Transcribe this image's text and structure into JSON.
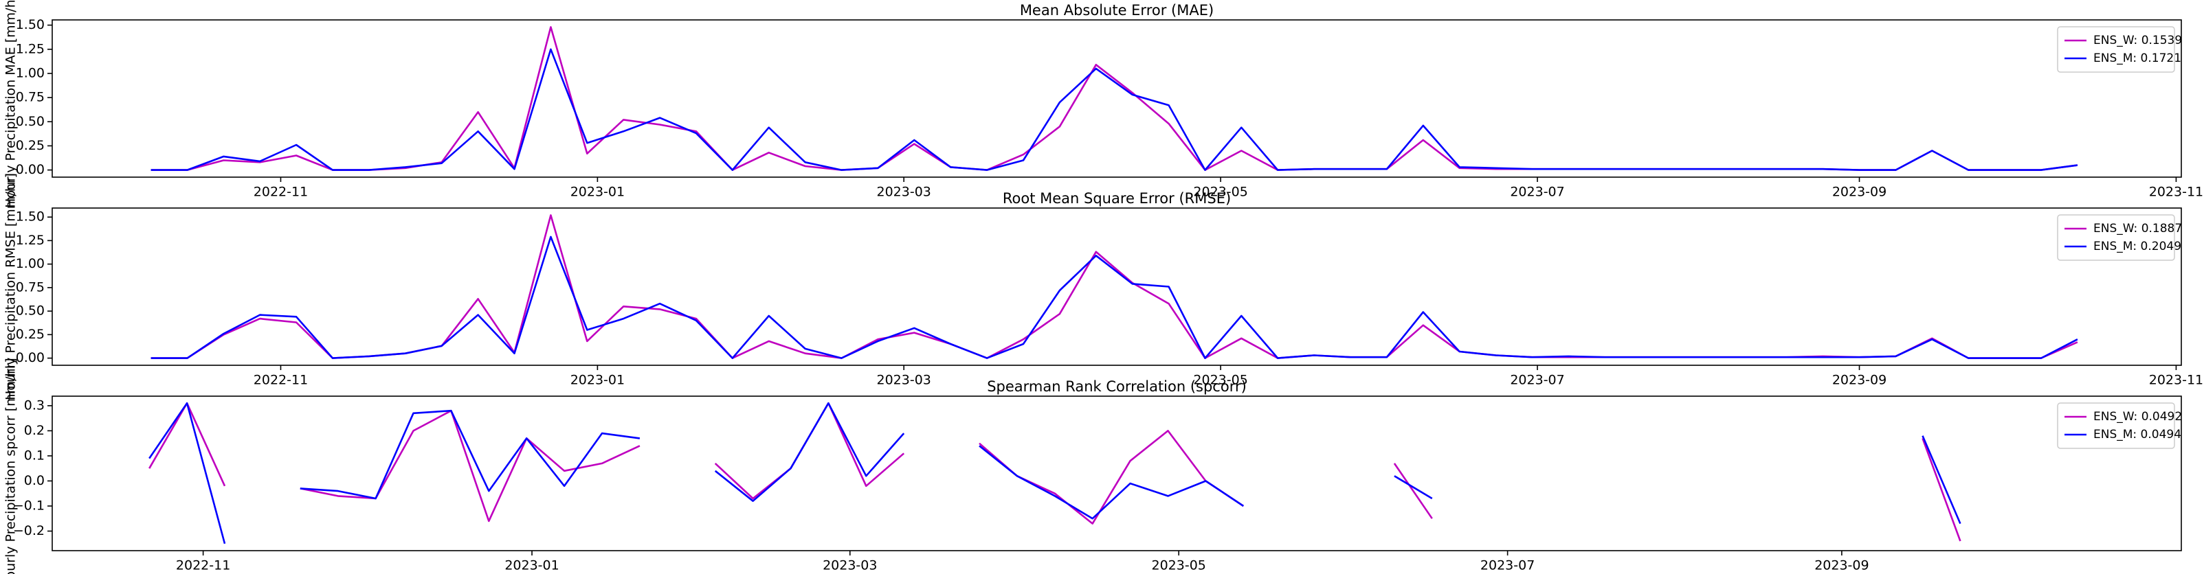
{
  "chart_data": [
    {
      "type": "line",
      "title": "Mean Absolute Error (MAE)",
      "y_label": "Hourly Precipitation MAE [mm/hr]",
      "x": [
        -25,
        -18,
        -11,
        -4,
        3,
        10,
        17,
        24,
        31,
        38,
        45,
        52,
        59,
        66,
        73,
        80,
        87,
        94,
        101,
        108,
        115,
        122,
        129,
        136,
        143,
        150,
        157,
        164,
        171,
        178,
        185,
        192,
        199,
        206,
        213,
        220,
        227,
        234,
        241,
        248,
        255,
        262,
        269,
        276,
        283,
        290,
        297,
        304,
        311,
        318,
        325,
        332,
        339,
        346
      ],
      "xlim": [
        -44,
        366
      ],
      "xticks": [
        {
          "value": 0,
          "label": "2022-11"
        },
        {
          "value": 61,
          "label": "2023-01"
        },
        {
          "value": 120,
          "label": "2023-03"
        },
        {
          "value": 181,
          "label": "2023-05"
        },
        {
          "value": 242,
          "label": "2023-07"
        },
        {
          "value": 304,
          "label": "2023-09"
        },
        {
          "value": 365,
          "label": "2023-11"
        }
      ],
      "ylim": [
        -0.074,
        1.554
      ],
      "yticks": [
        {
          "value": 0,
          "label": "0.00"
        },
        {
          "value": 0.25,
          "label": "0.25"
        },
        {
          "value": 0.5,
          "label": "0.50"
        },
        {
          "value": 0.75,
          "label": "0.75"
        },
        {
          "value": 1,
          "label": "1.00"
        },
        {
          "value": 1.25,
          "label": "1.25"
        },
        {
          "value": 1.5,
          "label": "1.50"
        }
      ],
      "legend": "upper right",
      "series": [
        {
          "name": "ENS_W: 0.1539",
          "color": "#bf00bf",
          "values": [
            0,
            0,
            0.1,
            0.08,
            0.15,
            0,
            0,
            0.02,
            0.08,
            0.6,
            0.02,
            1.48,
            0.17,
            0.52,
            0.47,
            0.4,
            0,
            0.18,
            0.04,
            0,
            0.02,
            0.27,
            0.03,
            0,
            0.16,
            0.45,
            1.09,
            0.8,
            0.48,
            0,
            0.2,
            0,
            0.01,
            0.01,
            0.01,
            0.31,
            0.02,
            0.01,
            0.01,
            0.01,
            0.01,
            0.01,
            0.01,
            0.01,
            0.01,
            0.01,
            0.01,
            0,
            0,
            0.2,
            0,
            0,
            0,
            0.05
          ]
        },
        {
          "name": "ENS_M: 0.1721",
          "color": "#0000ff",
          "values": [
            0,
            0,
            0.14,
            0.09,
            0.26,
            0,
            0,
            0.03,
            0.07,
            0.4,
            0.01,
            1.25,
            0.28,
            0.4,
            0.54,
            0.38,
            0,
            0.44,
            0.08,
            0,
            0.02,
            0.31,
            0.03,
            0,
            0.1,
            0.7,
            1.05,
            0.78,
            0.67,
            0,
            0.44,
            0,
            0.01,
            0.01,
            0.01,
            0.46,
            0.03,
            0.02,
            0.01,
            0.01,
            0.01,
            0.01,
            0.01,
            0.01,
            0.01,
            0.01,
            0.01,
            0,
            0,
            0.2,
            0,
            0,
            0,
            0.05
          ]
        }
      ]
    },
    {
      "type": "line",
      "title": "Root Mean Square Error (RMSE)",
      "y_label": "Hourly Precipitation RMSE [mm/hr]",
      "x": [
        -25,
        -18,
        -11,
        -4,
        3,
        10,
        17,
        24,
        31,
        38,
        45,
        52,
        59,
        66,
        73,
        80,
        87,
        94,
        101,
        108,
        115,
        122,
        129,
        136,
        143,
        150,
        157,
        164,
        171,
        178,
        185,
        192,
        199,
        206,
        213,
        220,
        227,
        234,
        241,
        248,
        255,
        262,
        269,
        276,
        283,
        290,
        297,
        304,
        311,
        318,
        325,
        332,
        339,
        346
      ],
      "xlim": [
        -44,
        366
      ],
      "xticks": [
        {
          "value": 0,
          "label": "2022-11"
        },
        {
          "value": 61,
          "label": "2023-01"
        },
        {
          "value": 120,
          "label": "2023-03"
        },
        {
          "value": 181,
          "label": "2023-05"
        },
        {
          "value": 242,
          "label": "2023-07"
        },
        {
          "value": 304,
          "label": "2023-09"
        },
        {
          "value": 365,
          "label": "2023-11"
        }
      ],
      "ylim": [
        -0.076,
        1.596
      ],
      "yticks": [
        {
          "value": 0,
          "label": "0.00"
        },
        {
          "value": 0.25,
          "label": "0.25"
        },
        {
          "value": 0.5,
          "label": "0.50"
        },
        {
          "value": 0.75,
          "label": "0.75"
        },
        {
          "value": 1,
          "label": "1.00"
        },
        {
          "value": 1.25,
          "label": "1.25"
        },
        {
          "value": 1.5,
          "label": "1.50"
        }
      ],
      "legend": "upper right",
      "series": [
        {
          "name": "ENS_W: 0.1887",
          "color": "#bf00bf",
          "values": [
            0,
            0,
            0.25,
            0.42,
            0.38,
            0,
            0.02,
            0.05,
            0.13,
            0.63,
            0.06,
            1.52,
            0.18,
            0.55,
            0.52,
            0.42,
            0,
            0.18,
            0.05,
            0,
            0.2,
            0.27,
            0.15,
            0,
            0.2,
            0.47,
            1.13,
            0.8,
            0.58,
            0,
            0.21,
            0,
            0.03,
            0.01,
            0.01,
            0.35,
            0.07,
            0.03,
            0.01,
            0.01,
            0.01,
            0.01,
            0.01,
            0.01,
            0.01,
            0.01,
            0.02,
            0.01,
            0.02,
            0.21,
            0,
            0,
            0,
            0.17
          ]
        },
        {
          "name": "ENS_M: 0.2049",
          "color": "#0000ff",
          "values": [
            0,
            0,
            0.26,
            0.46,
            0.44,
            0,
            0.02,
            0.05,
            0.13,
            0.46,
            0.05,
            1.29,
            0.3,
            0.42,
            0.58,
            0.4,
            0,
            0.45,
            0.1,
            0,
            0.18,
            0.32,
            0.15,
            0,
            0.15,
            0.72,
            1.09,
            0.79,
            0.76,
            0,
            0.45,
            0,
            0.03,
            0.01,
            0.01,
            0.49,
            0.07,
            0.03,
            0.01,
            0.02,
            0.01,
            0.01,
            0.01,
            0.01,
            0.01,
            0.01,
            0.01,
            0.01,
            0.02,
            0.2,
            0,
            0,
            0,
            0.2
          ]
        }
      ]
    },
    {
      "type": "line",
      "title": "Spearman Rank Correlation (spcorr)",
      "y_label": "Hourly Precipitation spcorr [mm/hr]",
      "x": [
        -10,
        -3,
        4,
        11,
        18,
        25,
        32,
        39,
        46,
        53,
        60,
        67,
        74,
        81,
        88,
        95,
        102,
        109,
        116,
        123,
        130,
        137,
        144,
        151,
        158,
        165,
        172,
        179,
        186,
        193,
        200,
        207,
        214,
        221,
        228,
        235,
        242,
        249,
        256,
        263,
        270,
        277,
        284,
        291,
        298,
        305,
        312,
        319,
        326
      ],
      "xlim": [
        -28,
        367
      ],
      "xticks": [
        {
          "value": 0,
          "label": "2022-11"
        },
        {
          "value": 61,
          "label": "2023-01"
        },
        {
          "value": 120,
          "label": "2023-03"
        },
        {
          "value": 181,
          "label": "2023-05"
        },
        {
          "value": 242,
          "label": "2023-07"
        },
        {
          "value": 304,
          "label": "2023-09"
        }
      ],
      "ylim": [
        -0.278,
        0.338
      ],
      "yticks": [
        {
          "value": -0.2,
          "label": "−0.2"
        },
        {
          "value": -0.1,
          "label": "−0.1"
        },
        {
          "value": 0,
          "label": "0.0"
        },
        0.1,
        0.2,
        0.3
      ],
      "legend": "upper right",
      "series": [
        {
          "name": "ENS_W: 0.0492",
          "color": "#bf00bf",
          "values": [
            0.05,
            0.31,
            -0.02,
            null,
            -0.03,
            -0.06,
            -0.07,
            0.2,
            0.28,
            -0.16,
            0.17,
            0.04,
            0.07,
            0.14,
            null,
            0.07,
            -0.07,
            0.05,
            0.31,
            -0.02,
            0.11,
            null,
            0.15,
            0.02,
            -0.05,
            -0.17,
            0.08,
            0.2,
            0.0,
            -0.1,
            null,
            null,
            null,
            0.07,
            -0.15,
            null,
            null,
            null,
            null,
            null,
            null,
            null,
            null,
            null,
            null,
            null,
            null,
            0.17,
            -0.24
          ]
        },
        {
          "name": "ENS_M: 0.0494",
          "color": "#0000ff",
          "values": [
            0.09,
            0.31,
            -0.25,
            null,
            -0.03,
            -0.04,
            -0.07,
            0.27,
            0.28,
            -0.04,
            0.17,
            -0.02,
            0.19,
            0.17,
            null,
            0.04,
            -0.08,
            0.05,
            0.31,
            0.02,
            0.19,
            null,
            0.14,
            0.02,
            -0.06,
            -0.15,
            -0.01,
            -0.06,
            0.0,
            -0.1,
            null,
            null,
            null,
            0.02,
            -0.07,
            null,
            null,
            null,
            null,
            null,
            null,
            null,
            null,
            null,
            null,
            null,
            null,
            0.18,
            -0.17
          ]
        }
      ]
    }
  ]
}
